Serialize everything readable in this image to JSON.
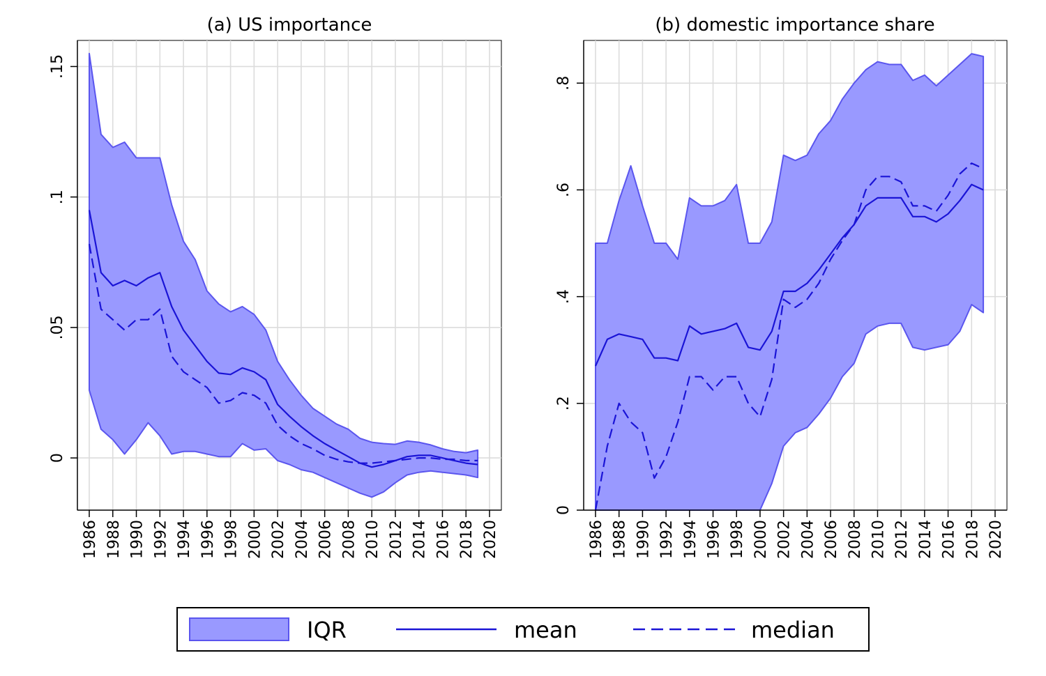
{
  "legend": {
    "position": "bottom",
    "items": [
      {
        "key": "iqr",
        "label": "IQR"
      },
      {
        "key": "mean",
        "label": "mean"
      },
      {
        "key": "median",
        "label": "median"
      }
    ]
  },
  "colors": {
    "band_fill": "#9999ff",
    "band_stroke": "#5a55ee",
    "line": "#1a14d6",
    "grid": "#dcdcdc",
    "axis": "#000000"
  },
  "chart_data": [
    {
      "type": "area",
      "title": "(a) US importance",
      "xlabel": "",
      "ylabel": "",
      "xlim": [
        1986,
        2020
      ],
      "ylim": [
        -0.02,
        0.16
      ],
      "x_ticks": [
        1986,
        1988,
        1990,
        1992,
        1994,
        1996,
        1998,
        2000,
        2002,
        2004,
        2006,
        2008,
        2010,
        2012,
        2014,
        2016,
        2018,
        2020
      ],
      "y_ticks": [
        0,
        0.05,
        0.1,
        0.15
      ],
      "y_tick_labels": [
        "0",
        ".05",
        ".1",
        ".15"
      ],
      "grid": true,
      "x": [
        1986,
        1987,
        1988,
        1989,
        1990,
        1991,
        1992,
        1993,
        1994,
        1995,
        1996,
        1997,
        1998,
        1999,
        2000,
        2001,
        2002,
        2003,
        2004,
        2005,
        2006,
        2007,
        2008,
        2009,
        2010,
        2011,
        2012,
        2013,
        2014,
        2015,
        2016,
        2017,
        2018,
        2019
      ],
      "series": [
        {
          "name": "IQR upper",
          "values": [
            0.155,
            0.124,
            0.119,
            0.121,
            0.115,
            0.115,
            0.115,
            0.097,
            0.083,
            0.076,
            0.064,
            0.059,
            0.056,
            0.058,
            0.055,
            0.049,
            0.037,
            0.03,
            0.024,
            0.019,
            0.016,
            0.013,
            0.011,
            0.0075,
            0.006,
            0.0055,
            0.0052,
            0.0065,
            0.006,
            0.005,
            0.0035,
            0.0025,
            0.002,
            0.003
          ]
        },
        {
          "name": "IQR lower",
          "values": [
            0.026,
            0.011,
            0.007,
            0.0015,
            0.007,
            0.0135,
            0.0085,
            0.0015,
            0.0025,
            0.0025,
            0.0015,
            0.0005,
            0.0005,
            0.0055,
            0.003,
            0.0035,
            -0.001,
            -0.0025,
            -0.0045,
            -0.0055,
            -0.0075,
            -0.0095,
            -0.0115,
            -0.0135,
            -0.015,
            -0.013,
            -0.0095,
            -0.0065,
            -0.0055,
            -0.005,
            -0.0055,
            -0.006,
            -0.0065,
            -0.0075
          ]
        },
        {
          "name": "mean",
          "values": [
            0.095,
            0.071,
            0.066,
            0.068,
            0.066,
            0.069,
            0.071,
            0.058,
            0.049,
            0.043,
            0.037,
            0.0325,
            0.032,
            0.0345,
            0.033,
            0.03,
            0.0205,
            0.016,
            0.012,
            0.0085,
            0.0055,
            0.003,
            0.0005,
            -0.002,
            -0.0035,
            -0.0025,
            -0.001,
            0.0005,
            0.001,
            0.001,
            0.0,
            -0.001,
            -0.002,
            -0.0025
          ]
        },
        {
          "name": "median",
          "values": [
            0.082,
            0.057,
            0.053,
            0.049,
            0.053,
            0.053,
            0.057,
            0.039,
            0.033,
            0.03,
            0.027,
            0.021,
            0.022,
            0.025,
            0.024,
            0.021,
            0.0125,
            0.0085,
            0.0055,
            0.0035,
            0.001,
            -0.0005,
            -0.0015,
            -0.002,
            -0.002,
            -0.0015,
            -0.001,
            -0.0005,
            0.0,
            0.0,
            -0.0005,
            -0.0005,
            -0.001,
            -0.001
          ]
        }
      ]
    },
    {
      "type": "area",
      "title": "(b) domestic importance share",
      "xlabel": "",
      "ylabel": "",
      "xlim": [
        1986,
        2020
      ],
      "ylim": [
        0,
        0.88
      ],
      "x_ticks": [
        1986,
        1988,
        1990,
        1992,
        1994,
        1996,
        1998,
        2000,
        2002,
        2004,
        2006,
        2008,
        2010,
        2012,
        2014,
        2016,
        2018,
        2020
      ],
      "y_ticks": [
        0,
        0.2,
        0.4,
        0.6,
        0.8
      ],
      "y_tick_labels": [
        "0",
        ".2",
        ".4",
        ".6",
        ".8"
      ],
      "grid": true,
      "x": [
        1986,
        1987,
        1988,
        1989,
        1990,
        1991,
        1992,
        1993,
        1994,
        1995,
        1996,
        1997,
        1998,
        1999,
        2000,
        2001,
        2002,
        2003,
        2004,
        2005,
        2006,
        2007,
        2008,
        2009,
        2010,
        2011,
        2012,
        2013,
        2014,
        2015,
        2016,
        2017,
        2018,
        2019
      ],
      "series": [
        {
          "name": "IQR upper",
          "values": [
            0.5,
            0.5,
            0.58,
            0.645,
            0.57,
            0.5,
            0.5,
            0.47,
            0.585,
            0.57,
            0.57,
            0.58,
            0.61,
            0.5,
            0.5,
            0.54,
            0.665,
            0.655,
            0.665,
            0.705,
            0.73,
            0.77,
            0.8,
            0.825,
            0.84,
            0.835,
            0.835,
            0.805,
            0.815,
            0.795,
            0.815,
            0.835,
            0.855,
            0.85
          ]
        },
        {
          "name": "IQR lower",
          "values": [
            0,
            0,
            0,
            0,
            0,
            0,
            0,
            0,
            0,
            0,
            0,
            0,
            0,
            0,
            0,
            0.05,
            0.12,
            0.145,
            0.155,
            0.18,
            0.21,
            0.25,
            0.275,
            0.33,
            0.345,
            0.35,
            0.35,
            0.305,
            0.3,
            0.305,
            0.31,
            0.335,
            0.385,
            0.37
          ]
        },
        {
          "name": "mean",
          "values": [
            0.27,
            0.32,
            0.33,
            0.325,
            0.32,
            0.285,
            0.285,
            0.28,
            0.345,
            0.33,
            0.335,
            0.34,
            0.35,
            0.305,
            0.3,
            0.335,
            0.41,
            0.41,
            0.425,
            0.45,
            0.48,
            0.51,
            0.535,
            0.57,
            0.585,
            0.585,
            0.585,
            0.55,
            0.55,
            0.54,
            0.555,
            0.58,
            0.61,
            0.6
          ]
        },
        {
          "name": "median",
          "values": [
            0,
            0.12,
            0.2,
            0.165,
            0.145,
            0.06,
            0.1,
            0.165,
            0.25,
            0.25,
            0.225,
            0.25,
            0.25,
            0.2,
            0.175,
            0.245,
            0.395,
            0.38,
            0.395,
            0.425,
            0.47,
            0.505,
            0.535,
            0.6,
            0.625,
            0.625,
            0.615,
            0.57,
            0.57,
            0.56,
            0.59,
            0.63,
            0.65,
            0.64
          ]
        }
      ]
    }
  ]
}
